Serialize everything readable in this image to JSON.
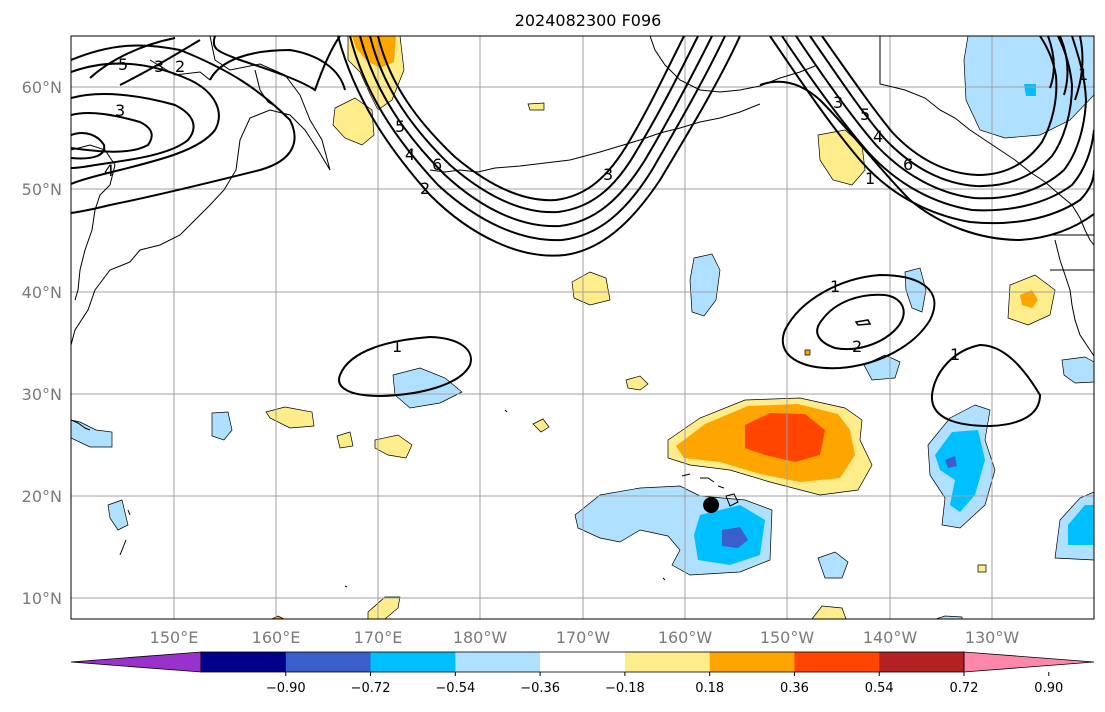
{
  "title": "2024082300 F096",
  "latitude_labels": [
    "60°N",
    "50°N",
    "40°N",
    "30°N",
    "20°N",
    "10°N"
  ],
  "longitude_labels": [
    "150°E",
    "160°E",
    "170°E",
    "180°W",
    "170°W",
    "160°W",
    "150°W",
    "140°W",
    "130°W"
  ],
  "colorbar": {
    "tick_labels": [
      "−0.90",
      "−0.72",
      "−0.54",
      "−0.36",
      "−0.18",
      "0.18",
      "0.36",
      "0.54",
      "0.72",
      "0.90"
    ],
    "colors": [
      "#9932cc",
      "#00008b",
      "#3a5fcd",
      "#00bfff",
      "#b0e0ff",
      "#ffffff",
      "#ffec8b",
      "#ffa500",
      "#ff4500",
      "#b22222",
      "#ff88aa"
    ]
  },
  "contour_labels": [
    "5",
    "3",
    "2",
    "3",
    "4",
    "5",
    "4",
    "6",
    "2",
    "3",
    "3",
    "5",
    "4",
    "6",
    "1",
    "1",
    "1",
    "2",
    "1",
    "1"
  ],
  "marker": {
    "name": "location-dot",
    "lon": -157.5,
    "lat": 19.1
  },
  "shading_colors": {
    "pale_yellow": "#ffec8b",
    "orange": "#ffa500",
    "orange_red": "#ff4500",
    "light_blue": "#b0e0ff",
    "deep_sky_blue": "#00bfff",
    "royal_blue": "#3a5fcd"
  }
}
